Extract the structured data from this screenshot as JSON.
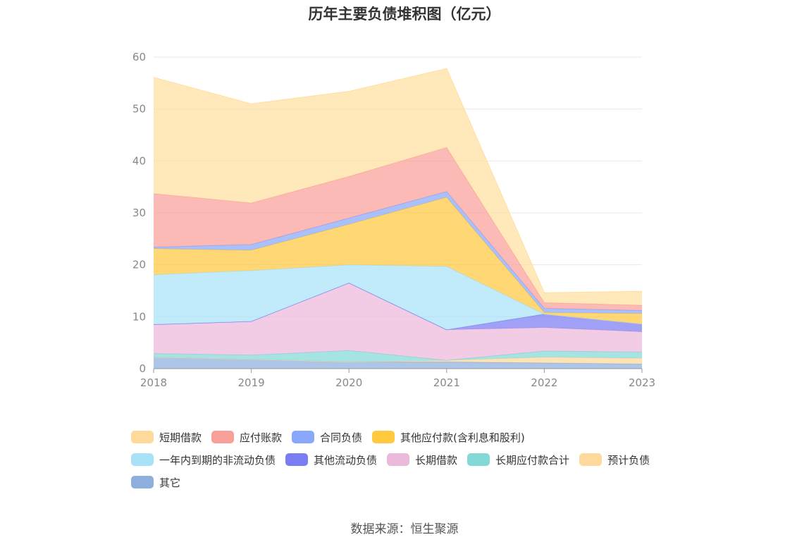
{
  "chart_data": {
    "type": "area",
    "stacked": true,
    "title": "历年主要负债堆积图（亿元）",
    "x": [
      "2018",
      "2019",
      "2020",
      "2021",
      "2022",
      "2023"
    ],
    "ylim": [
      0,
      60
    ],
    "yticks": [
      0,
      10,
      20,
      30,
      40,
      50,
      60
    ],
    "grid": true,
    "legend_position": "bottom",
    "series": [
      {
        "name": "其它",
        "color": "#8EAEDC",
        "values": [
          2.2,
          1.8,
          1.3,
          1.3,
          1.1,
          0.9
        ]
      },
      {
        "name": "预计负债",
        "color": "#FFD89B",
        "values": [
          0,
          0,
          0,
          0.3,
          1.1,
          1.1
        ]
      },
      {
        "name": "长期应付款合计",
        "color": "#84D8D8",
        "values": [
          0.7,
          0.8,
          2.2,
          0,
          1.2,
          1.2
        ]
      },
      {
        "name": "长期借款",
        "color": "#EBB9DA",
        "values": [
          5.6,
          6.5,
          13.0,
          5.9,
          4.5,
          3.9
        ]
      },
      {
        "name": "其他流动负债",
        "color": "#7A7CF2",
        "values": [
          0,
          0,
          0,
          0,
          2.6,
          1.5
        ]
      },
      {
        "name": "一年内到期的非流动负债",
        "color": "#A9E2F8",
        "values": [
          9.6,
          9.8,
          3.5,
          12.2,
          0,
          0
        ]
      },
      {
        "name": "其他应付款(含利息和股利)",
        "color": "#FFC940",
        "values": [
          5.0,
          3.9,
          7.8,
          13.3,
          0.3,
          2.0
        ]
      },
      {
        "name": "合同负债",
        "color": "#89A8FB",
        "values": [
          0.3,
          1.1,
          1.2,
          1.1,
          0.8,
          0.6
        ]
      },
      {
        "name": "应付账款",
        "color": "#FAA09A",
        "values": [
          10.3,
          8.0,
          8.0,
          8.5,
          1.1,
          1.0
        ]
      },
      {
        "name": "短期借款",
        "color": "#FFDFA0",
        "values": [
          22.4,
          19.1,
          16.4,
          15.2,
          1.9,
          2.7
        ]
      }
    ]
  },
  "legend": {
    "rows": [
      [
        {
          "label": "短期借款",
          "color": "#FFD99A"
        },
        {
          "label": "应付账款",
          "color": "#FAA09A"
        },
        {
          "label": "合同负债",
          "color": "#89A8FB"
        },
        {
          "label": "其他应付款(含利息和股利)",
          "color": "#FFC940"
        }
      ],
      [
        {
          "label": "一年内到期的非流动负债",
          "color": "#A9E2F8"
        },
        {
          "label": "其他流动负债",
          "color": "#7A7CF2"
        },
        {
          "label": "长期借款",
          "color": "#EBB9DA"
        },
        {
          "label": "长期应付款合计",
          "color": "#84D8D8"
        },
        {
          "label": "预计负债",
          "color": "#FFD89B"
        }
      ],
      [
        {
          "label": "其它",
          "color": "#8EAEDC"
        }
      ]
    ]
  },
  "source": "数据来源：恒生聚源"
}
